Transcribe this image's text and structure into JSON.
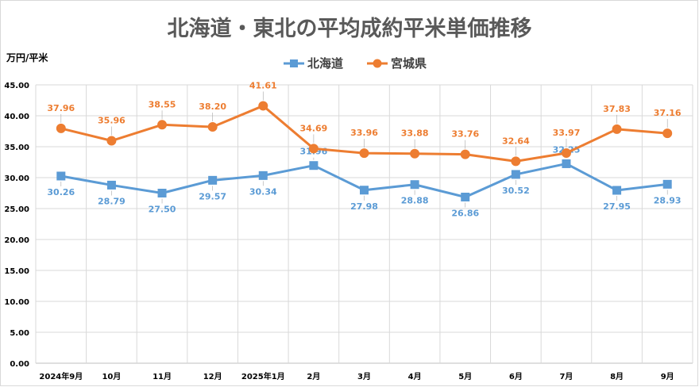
{
  "chart_data": {
    "type": "line",
    "title": "北海道・東北の平均成約平米単価推移",
    "ylabel": "万円/平米",
    "xlabel": "",
    "categories": [
      "2024年9月",
      "10月",
      "11月",
      "12月",
      "2025年1月",
      "2月",
      "3月",
      "4月",
      "5月",
      "6月",
      "7月",
      "8月",
      "9月"
    ],
    "ylim": [
      0,
      45
    ],
    "yticks": [
      "0.00",
      "5.00",
      "10.00",
      "15.00",
      "20.00",
      "25.00",
      "30.00",
      "35.00",
      "40.00",
      "45.00"
    ],
    "grid": true,
    "legend": "top-center",
    "series": [
      {
        "name": "北海道",
        "color": "#5b9bd5",
        "marker": "square",
        "values": [
          30.26,
          28.79,
          27.5,
          29.57,
          30.34,
          31.96,
          27.98,
          28.88,
          26.86,
          30.52,
          32.25,
          27.95,
          28.93
        ],
        "labels": [
          "30.26",
          "28.79",
          "27.50",
          "29.57",
          "30.34",
          "31.96",
          "27.98",
          "28.88",
          "26.86",
          "30.52",
          "32.25",
          "27.95",
          "28.93"
        ]
      },
      {
        "name": "宮城県",
        "color": "#ed7d31",
        "marker": "circle",
        "values": [
          37.96,
          35.96,
          38.55,
          38.2,
          41.61,
          34.69,
          33.96,
          33.88,
          33.76,
          32.64,
          33.97,
          37.83,
          37.16
        ],
        "labels": [
          "37.96",
          "35.96",
          "38.55",
          "38.20",
          "41.61",
          "34.69",
          "33.96",
          "33.88",
          "33.76",
          "32.64",
          "33.97",
          "37.83",
          "37.16"
        ]
      }
    ]
  }
}
